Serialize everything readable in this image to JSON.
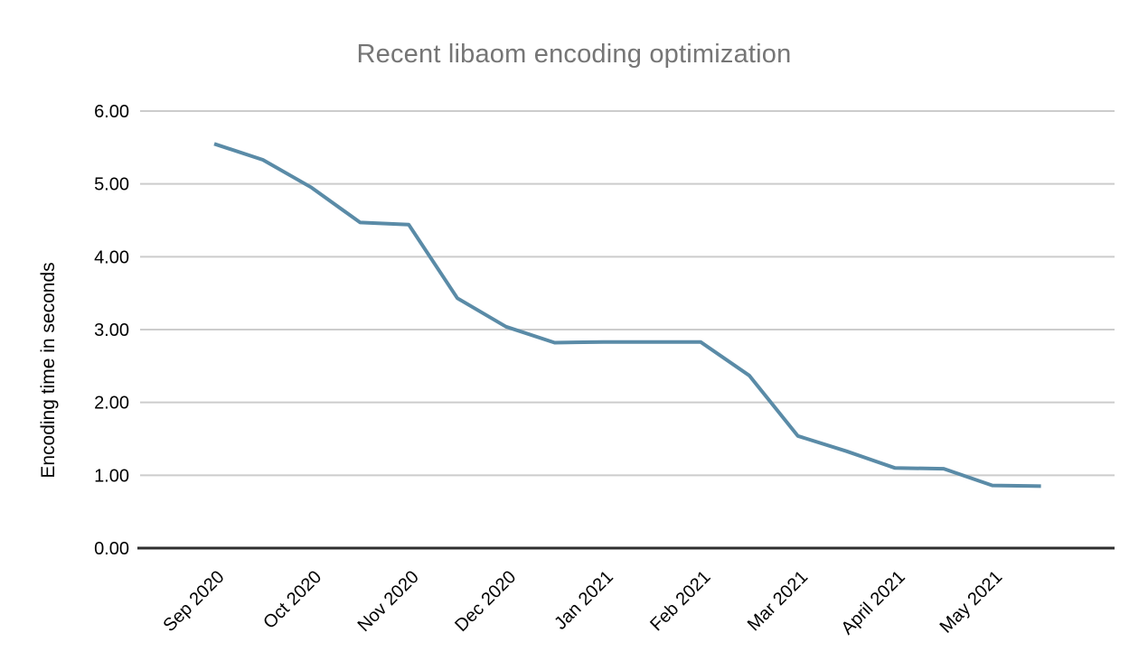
{
  "chart_data": {
    "type": "line",
    "title": "Recent libaom encoding optimization",
    "xlabel": "",
    "ylabel": "Encoding time in seconds",
    "ylim": [
      0,
      6
    ],
    "y_tick_step": 1,
    "y_tick_labels": [
      "6.00",
      "5.00",
      "4.00",
      "3.00",
      "2.00",
      "1.00",
      "0.00"
    ],
    "categories": [
      "Sep 2020",
      "Oct 2020",
      "Nov 2020",
      "Dec 2020",
      "Jan 2021",
      "Feb 2021",
      "Mar 2021",
      "April 2021",
      "May 2021"
    ],
    "points_per_category": 2,
    "grid": "horizontal",
    "legend": "none",
    "series": [
      {
        "name": "Encoding time in seconds",
        "values": [
          5.55,
          5.33,
          4.95,
          4.47,
          4.44,
          3.43,
          3.04,
          2.82,
          2.83,
          2.83,
          2.83,
          2.37,
          1.54,
          1.33,
          1.1,
          1.09,
          0.86,
          0.85
        ]
      }
    ]
  },
  "colors": {
    "title": "#757575",
    "series_line": "#5a8ba7",
    "gridline": "#cccccc",
    "axis_line": "#2e2e2e",
    "tick_label": "#000000",
    "background": "#ffffff"
  }
}
